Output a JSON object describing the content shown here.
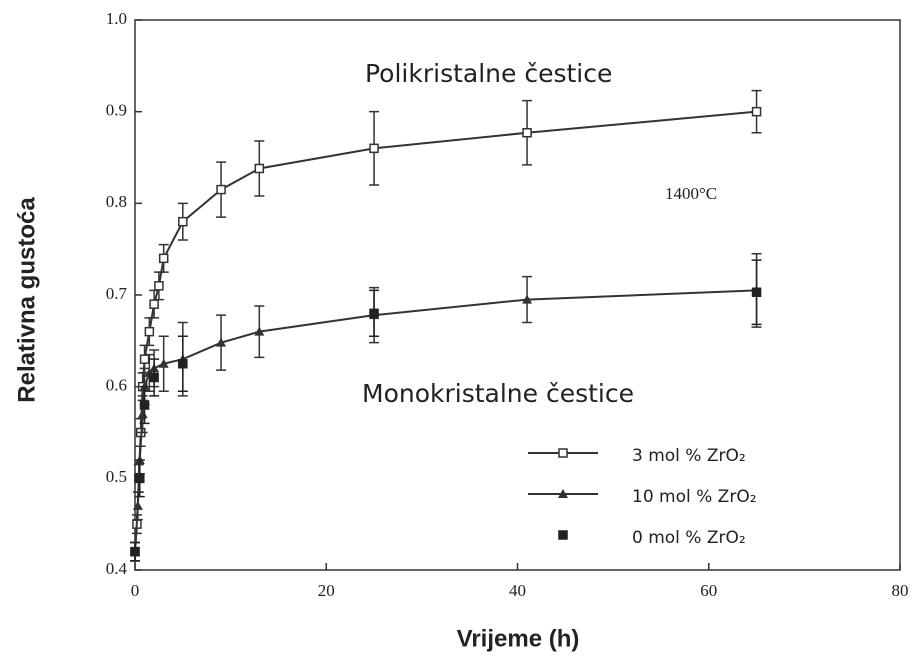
{
  "chart_data": {
    "type": "line",
    "xlabel": "Vrijeme (h)",
    "ylabel": "Relativna gustoća",
    "annotations": [
      "Polikristalne čestice",
      "Monokristalne čestice",
      "1400°C"
    ],
    "xlim": [
      0,
      80
    ],
    "xticks": [
      0,
      20,
      40,
      60,
      80
    ],
    "ylim": [
      0.4,
      1.0
    ],
    "yticks": [
      0.4,
      0.5,
      0.6,
      0.7,
      0.8,
      0.9,
      {
        "value": 1.0,
        "label": "1.0"
      }
    ],
    "legend": "lower right",
    "series": [
      {
        "name": "3 mol % ZrO₂",
        "color": "#333333",
        "marker": "open-square",
        "line": true,
        "x": [
          0,
          0.2,
          0.4,
          0.6,
          0.8,
          1,
          1.5,
          2,
          2.5,
          3,
          5,
          9,
          13,
          25,
          41,
          65
        ],
        "values": [
          0.42,
          0.45,
          0.5,
          0.55,
          0.6,
          0.63,
          0.66,
          0.69,
          0.71,
          0.74,
          0.78,
          0.815,
          0.838,
          0.86,
          0.877,
          0.9
        ],
        "errors": [
          0.01,
          0.01,
          0.015,
          0.015,
          0.015,
          0.015,
          0.015,
          0.015,
          0.015,
          0.015,
          0.02,
          0.03,
          0.03,
          0.04,
          0.035,
          0.023
        ]
      },
      {
        "name": "10 mol % ZrO₂",
        "color": "#333333",
        "marker": "triangle",
        "line": true,
        "x": [
          0,
          0.3,
          0.5,
          0.8,
          1,
          1.5,
          2,
          3,
          5,
          9,
          13,
          25,
          41,
          65
        ],
        "values": [
          0.42,
          0.47,
          0.52,
          0.57,
          0.6,
          0.615,
          0.62,
          0.625,
          0.63,
          0.648,
          0.66,
          0.678,
          0.695,
          0.705
        ],
        "errors": [
          0.01,
          0.015,
          0.015,
          0.02,
          0.02,
          0.02,
          0.02,
          0.03,
          0.04,
          0.03,
          0.028,
          0.03,
          0.025,
          0.04
        ]
      },
      {
        "name": "0 mol % ZrO₂",
        "color": "#222222",
        "marker": "square",
        "line": false,
        "x": [
          0,
          0.5,
          1,
          2,
          5,
          25,
          65
        ],
        "values": [
          0.42,
          0.5,
          0.58,
          0.61,
          0.625,
          0.68,
          0.703
        ],
        "errors": [
          0.01,
          0.02,
          0.02,
          0.02,
          0.03,
          0.025,
          0.035
        ]
      }
    ]
  }
}
